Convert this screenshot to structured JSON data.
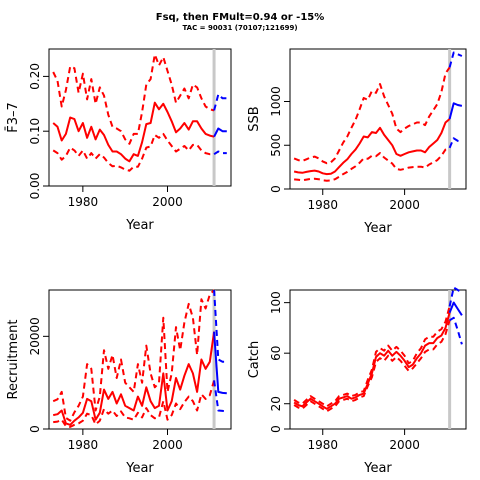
{
  "figure": {
    "title": "Fsq, then FMult=0.94 or -15%",
    "subtitle": "TAC = 90031 (70107;121699)"
  },
  "colors": {
    "historic": "#ff0000",
    "projection": "#0000ff",
    "marker": "#c8c8c8",
    "axis": "#000000"
  },
  "chart_data": [
    {
      "type": "line",
      "panel": "F",
      "xlabel": "Year",
      "ylabel": "F̄3–7",
      "xlim": [
        1972,
        2015
      ],
      "ylim": [
        0,
        0.25
      ],
      "xticks": [
        1980,
        2000
      ],
      "yticks": [
        0.0,
        0.1,
        0.2
      ],
      "ytick_labels": [
        "0.00",
        "0.10",
        "0.20"
      ],
      "marker_year": 2011,
      "historic": {
        "x": [
          1973,
          1974,
          1975,
          1976,
          1977,
          1978,
          1979,
          1980,
          1981,
          1982,
          1983,
          1984,
          1985,
          1986,
          1987,
          1988,
          1989,
          1990,
          1991,
          1992,
          1993,
          1994,
          1995,
          1996,
          1997,
          1998,
          1999,
          2000,
          2001,
          2002,
          2003,
          2004,
          2005,
          2006,
          2007,
          2008,
          2009,
          2010,
          2011
        ],
        "median": [
          0.115,
          0.108,
          0.083,
          0.095,
          0.125,
          0.122,
          0.1,
          0.115,
          0.088,
          0.108,
          0.085,
          0.103,
          0.093,
          0.075,
          0.063,
          0.063,
          0.058,
          0.05,
          0.045,
          0.058,
          0.055,
          0.08,
          0.113,
          0.115,
          0.152,
          0.14,
          0.15,
          0.135,
          0.118,
          0.098,
          0.105,
          0.115,
          0.103,
          0.118,
          0.118,
          0.105,
          0.095,
          0.092,
          0.09
        ],
        "lower": [
          0.065,
          0.06,
          0.048,
          0.055,
          0.07,
          0.065,
          0.055,
          0.065,
          0.05,
          0.06,
          0.05,
          0.058,
          0.052,
          0.042,
          0.036,
          0.037,
          0.034,
          0.03,
          0.028,
          0.035,
          0.035,
          0.05,
          0.07,
          0.072,
          0.093,
          0.088,
          0.095,
          0.083,
          0.073,
          0.063,
          0.068,
          0.073,
          0.065,
          0.075,
          0.075,
          0.065,
          0.06,
          0.058,
          0.058
        ],
        "upper": [
          0.208,
          0.192,
          0.145,
          0.175,
          0.218,
          0.215,
          0.17,
          0.205,
          0.158,
          0.195,
          0.15,
          0.18,
          0.165,
          0.13,
          0.108,
          0.105,
          0.1,
          0.085,
          0.077,
          0.095,
          0.095,
          0.135,
          0.185,
          0.195,
          0.24,
          0.22,
          0.235,
          0.21,
          0.185,
          0.152,
          0.165,
          0.178,
          0.16,
          0.185,
          0.18,
          0.16,
          0.145,
          0.14,
          0.138
        ]
      },
      "projection": {
        "x": [
          2012,
          2013,
          2014
        ],
        "median": [
          0.105,
          0.1,
          0.1
        ],
        "lower": [
          0.063,
          0.06,
          0.06
        ],
        "upper": [
          0.167,
          0.16,
          0.16
        ]
      }
    },
    {
      "type": "line",
      "panel": "SSB",
      "xlabel": "Year",
      "ylabel": "SSB",
      "xlim": [
        1972,
        2015
      ],
      "ylim": [
        0,
        1600
      ],
      "xticks": [
        1980,
        2000
      ],
      "yticks": [
        0,
        500,
        1000
      ],
      "ytick_labels": [
        "0",
        "500",
        "1000"
      ],
      "marker_year": 2011,
      "historic": {
        "x": [
          1973,
          1974,
          1975,
          1976,
          1977,
          1978,
          1979,
          1980,
          1981,
          1982,
          1983,
          1984,
          1985,
          1986,
          1987,
          1988,
          1989,
          1990,
          1991,
          1992,
          1993,
          1994,
          1995,
          1996,
          1997,
          1998,
          1999,
          2000,
          2001,
          2002,
          2003,
          2004,
          2005,
          2006,
          2007,
          2008,
          2009,
          2010,
          2011
        ],
        "median": [
          200,
          190,
          185,
          195,
          205,
          210,
          200,
          180,
          170,
          175,
          200,
          250,
          300,
          340,
          400,
          450,
          520,
          600,
          590,
          650,
          640,
          700,
          620,
          560,
          500,
          400,
          380,
          400,
          420,
          430,
          440,
          440,
          420,
          480,
          520,
          560,
          640,
          760,
          800
        ],
        "lower": [
          110,
          105,
          100,
          108,
          115,
          118,
          112,
          100,
          95,
          98,
          112,
          140,
          170,
          195,
          230,
          260,
          300,
          350,
          345,
          380,
          375,
          410,
          360,
          325,
          290,
          230,
          220,
          230,
          245,
          250,
          255,
          255,
          245,
          280,
          305,
          330,
          380,
          450,
          470
        ],
        "upper": [
          350,
          330,
          320,
          340,
          360,
          370,
          350,
          315,
          295,
          305,
          350,
          440,
          530,
          600,
          700,
          790,
          910,
          1040,
          1020,
          1120,
          1100,
          1200,
          1060,
          960,
          860,
          690,
          650,
          690,
          720,
          740,
          760,
          760,
          730,
          830,
          900,
          970,
          1110,
          1320,
          1390
        ]
      },
      "projection": {
        "x": [
          2012,
          2013,
          2014
        ],
        "median": [
          980,
          960,
          950
        ],
        "lower": [
          580,
          550,
          540
        ],
        "upper": [
          1560,
          1540,
          1520
        ]
      }
    },
    {
      "type": "line",
      "panel": "Recruitment",
      "xlabel": "Year",
      "ylabel": "Recruitment",
      "xlim": [
        1972,
        2015
      ],
      "ylim": [
        0,
        30000
      ],
      "xticks": [
        1980,
        2000
      ],
      "yticks": [
        0,
        20000
      ],
      "ytick_labels": [
        "0",
        "20000"
      ],
      "marker_year": 2011,
      "historic": {
        "x": [
          1973,
          1974,
          1975,
          1976,
          1977,
          1978,
          1979,
          1980,
          1981,
          1982,
          1983,
          1984,
          1985,
          1986,
          1987,
          1988,
          1989,
          1990,
          1991,
          1992,
          1993,
          1994,
          1995,
          1996,
          1997,
          1998,
          1999,
          2000,
          2001,
          2002,
          2003,
          2004,
          2005,
          2006,
          2007,
          2008,
          2009,
          2010,
          2011
        ],
        "median": [
          3000,
          3200,
          4000,
          1200,
          900,
          1800,
          2500,
          3500,
          6500,
          6000,
          2000,
          3500,
          8500,
          6500,
          8000,
          5500,
          7500,
          5000,
          4500,
          4000,
          7000,
          5000,
          9000,
          6000,
          4500,
          5000,
          12000,
          4000,
          6000,
          11000,
          8500,
          11500,
          14000,
          12000,
          8000,
          15000,
          13000,
          14500,
          21000
        ],
        "lower": [
          1500,
          1600,
          2000,
          600,
          450,
          900,
          1200,
          1800,
          3300,
          3000,
          1000,
          1800,
          4300,
          3300,
          4000,
          2800,
          3800,
          2500,
          2300,
          2000,
          3500,
          2500,
          4500,
          3000,
          2300,
          2500,
          6000,
          2000,
          3000,
          5500,
          4300,
          5800,
          7000,
          6000,
          4000,
          7500,
          6500,
          7300,
          10500
        ],
        "upper": [
          6000,
          6400,
          8000,
          2400,
          1800,
          3600,
          5000,
          7000,
          14000,
          13000,
          4000,
          7000,
          17000,
          13000,
          16000,
          11000,
          15000,
          10000,
          9000,
          8000,
          14000,
          10000,
          18000,
          12000,
          9000,
          10000,
          24000,
          8000,
          12000,
          22000,
          17000,
          23000,
          27000,
          24000,
          16000,
          28000,
          26000,
          29000,
          30000
        ]
      },
      "projection": {
        "x": [
          2012,
          2013,
          2014
        ],
        "median": [
          8000,
          7800,
          7700
        ],
        "lower": [
          4000,
          3900,
          3800
        ],
        "upper": [
          15000,
          14500,
          14500
        ]
      }
    },
    {
      "type": "line",
      "panel": "Catch",
      "xlabel": "Year",
      "ylabel": "Catch",
      "xlim": [
        1972,
        2015
      ],
      "ylim": [
        0,
        110
      ],
      "xticks": [
        1980,
        2000
      ],
      "yticks": [
        0,
        20,
        60,
        100
      ],
      "ytick_labels": [
        "0",
        "20",
        "60",
        "100"
      ],
      "marker_year": 2011,
      "historic": {
        "x": [
          1973,
          1974,
          1975,
          1976,
          1977,
          1978,
          1979,
          1980,
          1981,
          1982,
          1983,
          1984,
          1985,
          1986,
          1987,
          1988,
          1989,
          1990,
          1991,
          1992,
          1993,
          1994,
          1995,
          1996,
          1997,
          1998,
          1999,
          2000,
          2001,
          2002,
          2003,
          2004,
          2005,
          2006,
          2007,
          2008,
          2009,
          2010,
          2011
        ],
        "median": [
          21,
          19,
          18,
          21,
          24,
          22,
          20,
          18,
          16,
          18,
          20,
          24,
          25,
          26,
          24,
          25,
          27,
          28,
          36,
          44,
          57,
          60,
          58,
          62,
          58,
          61,
          58,
          54,
          49,
          51,
          56,
          60,
          66,
          68,
          68,
          72,
          74,
          80,
          92
        ],
        "lower": [
          19,
          17,
          16,
          19,
          22,
          20,
          18,
          16,
          14,
          16,
          18,
          22,
          23,
          24,
          22,
          23,
          25,
          26,
          34,
          41,
          53,
          56,
          54,
          58,
          54,
          57,
          54,
          50,
          46,
          48,
          52,
          56,
          61,
          63,
          63,
          67,
          69,
          75,
          86
        ],
        "upper": [
          23,
          21,
          20,
          23,
          26,
          24,
          22,
          20,
          18,
          20,
          22,
          26,
          27,
          28,
          26,
          27,
          29,
          30,
          39,
          47,
          61,
          64,
          62,
          66,
          62,
          65,
          62,
          58,
          52,
          54,
          60,
          64,
          71,
          73,
          73,
          77,
          79,
          85,
          97
        ]
      },
      "projection": {
        "x": [
          2012,
          2013,
          2014
        ],
        "median": [
          100,
          95,
          90
        ],
        "lower": [
          88,
          78,
          67
        ],
        "upper": [
          112,
          110,
          108
        ]
      }
    }
  ]
}
